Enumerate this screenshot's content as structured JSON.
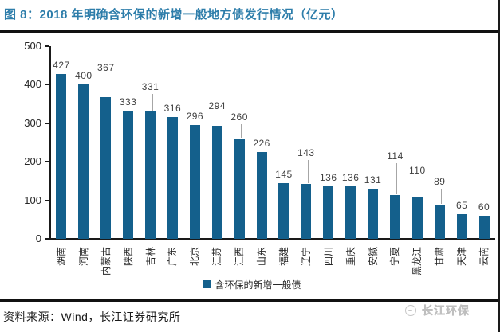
{
  "header": {
    "title": "图 8：2018 年明确含环保的新增一般地方债发行情况（亿元）"
  },
  "chart_data": {
    "type": "bar",
    "title": "2018 年明确含环保的新增一般地方债发行情况（亿元）",
    "categories": [
      "湖南",
      "河南",
      "内蒙古",
      "陕西",
      "吉林",
      "广东",
      "北京",
      "江苏",
      "江西",
      "山东",
      "福建",
      "辽宁",
      "四川",
      "重庆",
      "安徽",
      "宁夏",
      "黑龙江",
      "甘肃",
      "天津",
      "云南"
    ],
    "values": [
      427,
      400,
      367,
      333,
      331,
      316,
      296,
      294,
      260,
      226,
      145,
      143,
      136,
      136,
      131,
      114,
      110,
      89,
      65,
      60
    ],
    "legend": "含环保的新增一般债",
    "legend_position": "bottom",
    "grid": false,
    "xlabel": "",
    "ylabel": "",
    "ylim": [
      0,
      500
    ],
    "yticks": [
      0,
      100,
      200,
      300,
      400,
      500
    ],
    "bar_color": "#14608c",
    "label_raise": [
      0,
      0,
      26,
      0,
      20,
      0,
      0,
      14,
      16,
      0,
      0,
      28,
      0,
      0,
      0,
      38,
      22,
      18,
      0,
      0
    ]
  },
  "footer": {
    "source": "资料来源：Wind，长江证券研究所"
  },
  "watermark": {
    "text": "长江环保"
  },
  "colors": {
    "title": "#2d7daa",
    "bar": "#14608c",
    "axis": "#1a1a1a",
    "value_label": "#3f3f3f",
    "leader_line": "#a6a6a6",
    "watermark": "#c6c6c6"
  }
}
